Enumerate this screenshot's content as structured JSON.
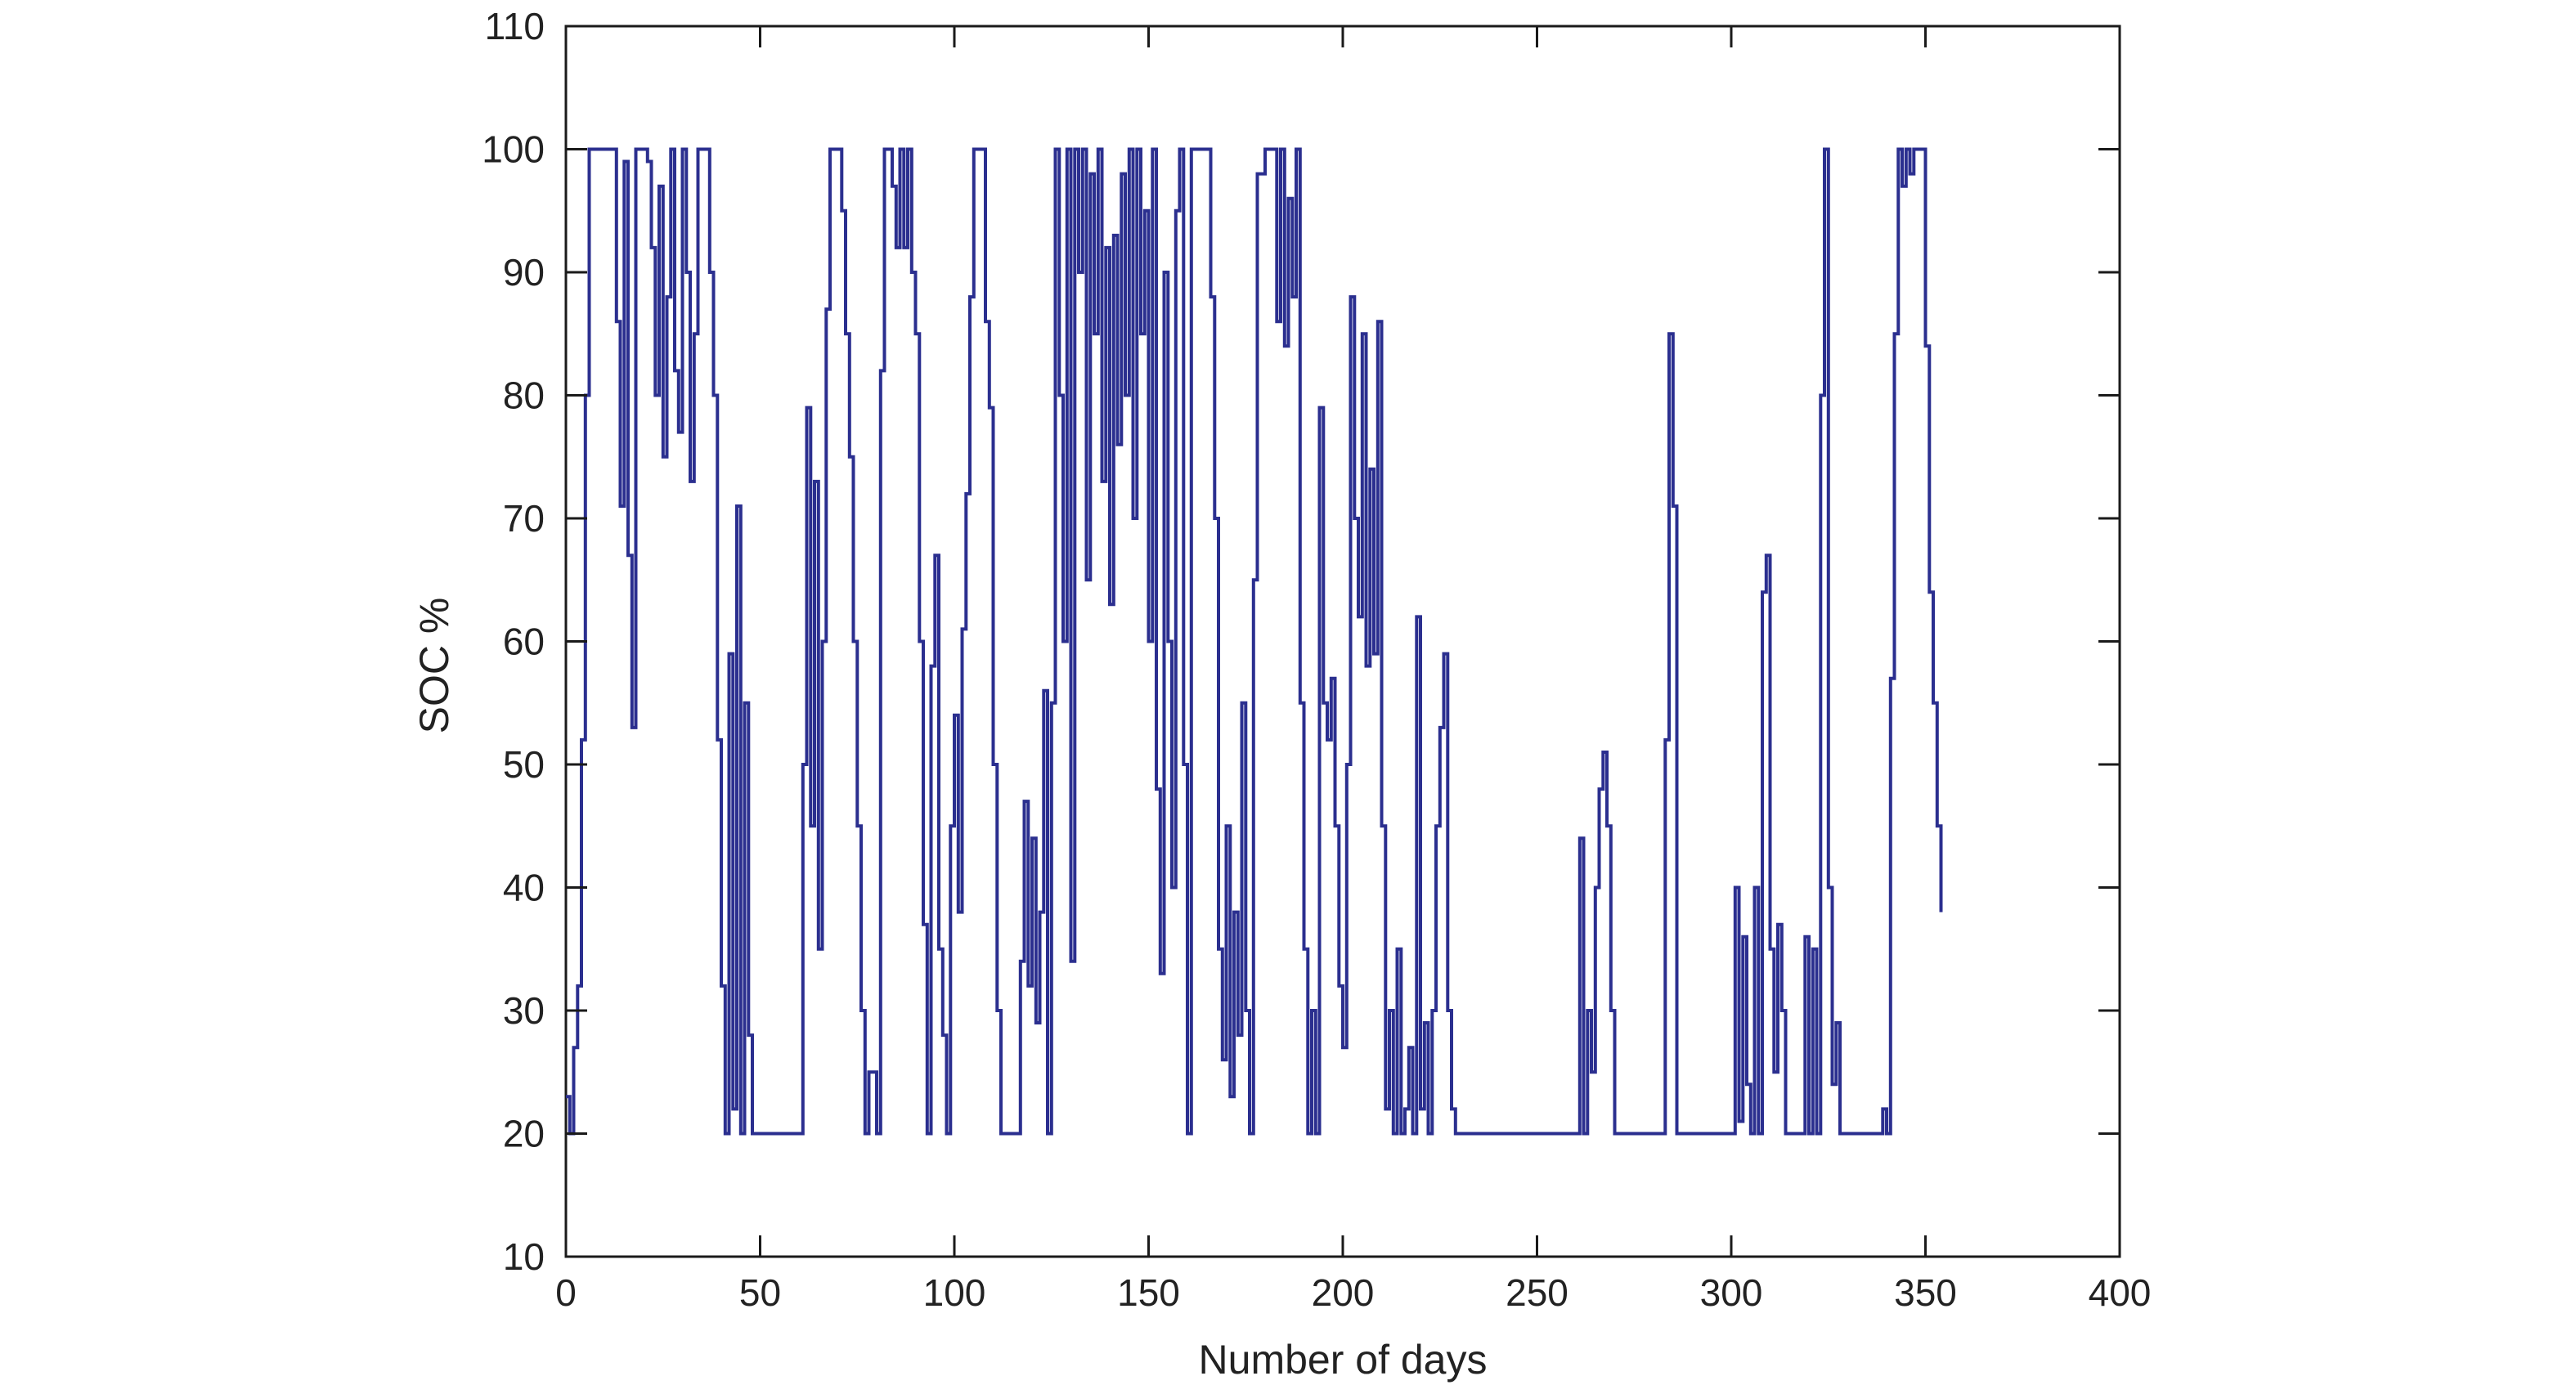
{
  "chart_data": {
    "type": "line",
    "title": "",
    "xlabel": "Number of days",
    "ylabel": "SOC %",
    "xlim": [
      0,
      400
    ],
    "ylim": [
      10,
      110
    ],
    "xticks": [
      0,
      50,
      100,
      150,
      200,
      250,
      300,
      350,
      400
    ],
    "yticks": [
      10,
      20,
      30,
      40,
      50,
      60,
      70,
      80,
      90,
      100,
      110
    ],
    "grid": false,
    "legend": "none",
    "series": [
      {
        "color": "#2b2f8f",
        "points": [
          [
            0,
            23
          ],
          [
            1,
            20
          ],
          [
            2,
            27
          ],
          [
            3,
            32
          ],
          [
            4,
            52
          ],
          [
            5,
            80
          ],
          [
            6,
            100
          ],
          [
            8,
            100
          ],
          [
            10,
            100
          ],
          [
            12,
            100
          ],
          [
            13,
            86
          ],
          [
            14,
            71
          ],
          [
            15,
            99
          ],
          [
            16,
            67
          ],
          [
            17,
            53
          ],
          [
            18,
            100
          ],
          [
            20,
            100
          ],
          [
            21,
            99
          ],
          [
            22,
            92
          ],
          [
            23,
            80
          ],
          [
            24,
            97
          ],
          [
            25,
            75
          ],
          [
            26,
            88
          ],
          [
            27,
            100
          ],
          [
            28,
            82
          ],
          [
            29,
            77
          ],
          [
            30,
            100
          ],
          [
            31,
            90
          ],
          [
            32,
            73
          ],
          [
            33,
            85
          ],
          [
            34,
            100
          ],
          [
            36,
            100
          ],
          [
            37,
            90
          ],
          [
            38,
            80
          ],
          [
            39,
            52
          ],
          [
            40,
            32
          ],
          [
            41,
            20
          ],
          [
            42,
            59
          ],
          [
            43,
            22
          ],
          [
            44,
            71
          ],
          [
            45,
            20
          ],
          [
            46,
            55
          ],
          [
            47,
            28
          ],
          [
            48,
            20
          ],
          [
            52,
            20
          ],
          [
            56,
            20
          ],
          [
            60,
            20
          ],
          [
            61,
            50
          ],
          [
            62,
            79
          ],
          [
            63,
            45
          ],
          [
            64,
            73
          ],
          [
            65,
            35
          ],
          [
            66,
            60
          ],
          [
            67,
            87
          ],
          [
            68,
            100
          ],
          [
            70,
            100
          ],
          [
            71,
            95
          ],
          [
            72,
            85
          ],
          [
            73,
            75
          ],
          [
            74,
            60
          ],
          [
            75,
            45
          ],
          [
            76,
            30
          ],
          [
            77,
            20
          ],
          [
            78,
            25
          ],
          [
            80,
            20
          ],
          [
            81,
            82
          ],
          [
            82,
            100
          ],
          [
            84,
            97
          ],
          [
            85,
            92
          ],
          [
            86,
            100
          ],
          [
            87,
            92
          ],
          [
            88,
            100
          ],
          [
            89,
            90
          ],
          [
            90,
            85
          ],
          [
            91,
            60
          ],
          [
            92,
            37
          ],
          [
            93,
            20
          ],
          [
            94,
            58
          ],
          [
            95,
            67
          ],
          [
            96,
            35
          ],
          [
            97,
            28
          ],
          [
            98,
            20
          ],
          [
            99,
            45
          ],
          [
            100,
            54
          ],
          [
            101,
            38
          ],
          [
            102,
            61
          ],
          [
            103,
            72
          ],
          [
            104,
            88
          ],
          [
            105,
            100
          ],
          [
            107,
            100
          ],
          [
            108,
            86
          ],
          [
            109,
            79
          ],
          [
            110,
            50
          ],
          [
            111,
            30
          ],
          [
            112,
            20
          ],
          [
            114,
            20
          ],
          [
            116,
            20
          ],
          [
            117,
            34
          ],
          [
            118,
            47
          ],
          [
            119,
            32
          ],
          [
            120,
            44
          ],
          [
            121,
            29
          ],
          [
            122,
            38
          ],
          [
            123,
            56
          ],
          [
            124,
            20
          ],
          [
            125,
            55
          ],
          [
            126,
            100
          ],
          [
            127,
            80
          ],
          [
            128,
            60
          ],
          [
            129,
            100
          ],
          [
            130,
            34
          ],
          [
            131,
            100
          ],
          [
            132,
            90
          ],
          [
            133,
            100
          ],
          [
            134,
            65
          ],
          [
            135,
            98
          ],
          [
            136,
            85
          ],
          [
            137,
            100
          ],
          [
            138,
            73
          ],
          [
            139,
            92
          ],
          [
            140,
            63
          ],
          [
            141,
            93
          ],
          [
            142,
            76
          ],
          [
            143,
            98
          ],
          [
            144,
            80
          ],
          [
            145,
            100
          ],
          [
            146,
            70
          ],
          [
            147,
            100
          ],
          [
            148,
            85
          ],
          [
            149,
            95
          ],
          [
            150,
            60
          ],
          [
            151,
            100
          ],
          [
            152,
            48
          ],
          [
            153,
            33
          ],
          [
            154,
            90
          ],
          [
            155,
            60
          ],
          [
            156,
            40
          ],
          [
            157,
            95
          ],
          [
            158,
            100
          ],
          [
            159,
            50
          ],
          [
            160,
            20
          ],
          [
            161,
            100
          ],
          [
            162,
            100
          ],
          [
            165,
            100
          ],
          [
            166,
            88
          ],
          [
            167,
            70
          ],
          [
            168,
            35
          ],
          [
            169,
            26
          ],
          [
            170,
            45
          ],
          [
            171,
            23
          ],
          [
            172,
            38
          ],
          [
            173,
            28
          ],
          [
            174,
            55
          ],
          [
            175,
            30
          ],
          [
            176,
            20
          ],
          [
            177,
            65
          ],
          [
            178,
            98
          ],
          [
            180,
            100
          ],
          [
            182,
            100
          ],
          [
            183,
            86
          ],
          [
            184,
            100
          ],
          [
            185,
            84
          ],
          [
            186,
            96
          ],
          [
            187,
            88
          ],
          [
            188,
            100
          ],
          [
            189,
            55
          ],
          [
            190,
            35
          ],
          [
            191,
            20
          ],
          [
            192,
            30
          ],
          [
            193,
            20
          ],
          [
            194,
            79
          ],
          [
            195,
            55
          ],
          [
            196,
            52
          ],
          [
            197,
            57
          ],
          [
            198,
            45
          ],
          [
            199,
            32
          ],
          [
            200,
            27
          ],
          [
            201,
            50
          ],
          [
            202,
            88
          ],
          [
            203,
            70
          ],
          [
            204,
            62
          ],
          [
            205,
            85
          ],
          [
            206,
            58
          ],
          [
            207,
            74
          ],
          [
            208,
            59
          ],
          [
            209,
            86
          ],
          [
            210,
            45
          ],
          [
            211,
            22
          ],
          [
            212,
            30
          ],
          [
            213,
            20
          ],
          [
            214,
            35
          ],
          [
            215,
            20
          ],
          [
            216,
            22
          ],
          [
            217,
            27
          ],
          [
            218,
            20
          ],
          [
            219,
            62
          ],
          [
            220,
            22
          ],
          [
            221,
            29
          ],
          [
            222,
            20
          ],
          [
            223,
            30
          ],
          [
            224,
            45
          ],
          [
            225,
            53
          ],
          [
            226,
            59
          ],
          [
            227,
            30
          ],
          [
            228,
            22
          ],
          [
            229,
            20
          ],
          [
            232,
            20
          ],
          [
            236,
            20
          ],
          [
            240,
            20
          ],
          [
            244,
            20
          ],
          [
            248,
            20
          ],
          [
            252,
            20
          ],
          [
            256,
            20
          ],
          [
            260,
            20
          ],
          [
            261,
            44
          ],
          [
            262,
            20
          ],
          [
            263,
            30
          ],
          [
            264,
            25
          ],
          [
            265,
            40
          ],
          [
            266,
            48
          ],
          [
            267,
            51
          ],
          [
            268,
            45
          ],
          [
            269,
            30
          ],
          [
            270,
            20
          ],
          [
            274,
            20
          ],
          [
            278,
            20
          ],
          [
            282,
            20
          ],
          [
            283,
            52
          ],
          [
            284,
            85
          ],
          [
            285,
            71
          ],
          [
            286,
            20
          ],
          [
            290,
            20
          ],
          [
            294,
            20
          ],
          [
            298,
            20
          ],
          [
            300,
            20
          ],
          [
            301,
            40
          ],
          [
            302,
            21
          ],
          [
            303,
            36
          ],
          [
            304,
            24
          ],
          [
            305,
            20
          ],
          [
            306,
            40
          ],
          [
            307,
            20
          ],
          [
            308,
            64
          ],
          [
            309,
            67
          ],
          [
            310,
            35
          ],
          [
            311,
            25
          ],
          [
            312,
            37
          ],
          [
            313,
            30
          ],
          [
            314,
            20
          ],
          [
            318,
            20
          ],
          [
            319,
            36
          ],
          [
            320,
            20
          ],
          [
            321,
            35
          ],
          [
            322,
            20
          ],
          [
            323,
            80
          ],
          [
            324,
            100
          ],
          [
            325,
            40
          ],
          [
            326,
            24
          ],
          [
            327,
            29
          ],
          [
            328,
            20
          ],
          [
            332,
            20
          ],
          [
            336,
            20
          ],
          [
            339,
            22
          ],
          [
            340,
            20
          ],
          [
            341,
            57
          ],
          [
            342,
            85
          ],
          [
            343,
            100
          ],
          [
            344,
            97
          ],
          [
            345,
            100
          ],
          [
            346,
            98
          ],
          [
            347,
            100
          ],
          [
            349,
            100
          ],
          [
            350,
            84
          ],
          [
            351,
            64
          ],
          [
            352,
            55
          ],
          [
            353,
            45
          ],
          [
            354,
            38
          ]
        ]
      }
    ]
  }
}
